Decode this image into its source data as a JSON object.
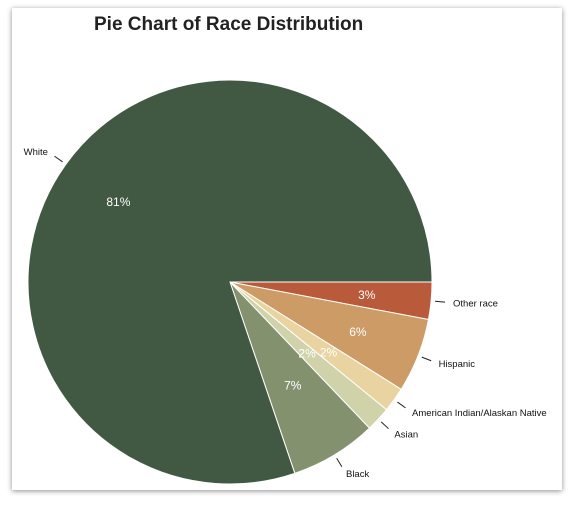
{
  "chart_data": {
    "type": "pie",
    "title": "Pie Chart of Race Distribution",
    "start_angle_deg": 0,
    "direction": "clockwise",
    "categories": [
      "Other race",
      "Hispanic",
      "American Indian/Alaskan Native",
      "Asian",
      "Black",
      "White"
    ],
    "values": [
      3,
      6,
      2,
      2,
      7,
      81
    ],
    "data_labels": [
      "3%",
      "6%",
      "2%",
      "2%",
      "7%",
      "81%"
    ],
    "colors": [
      "#b95a3a",
      "#cd9b66",
      "#e9d3a1",
      "#d0d3aa",
      "#84916f",
      "#415843"
    ]
  }
}
